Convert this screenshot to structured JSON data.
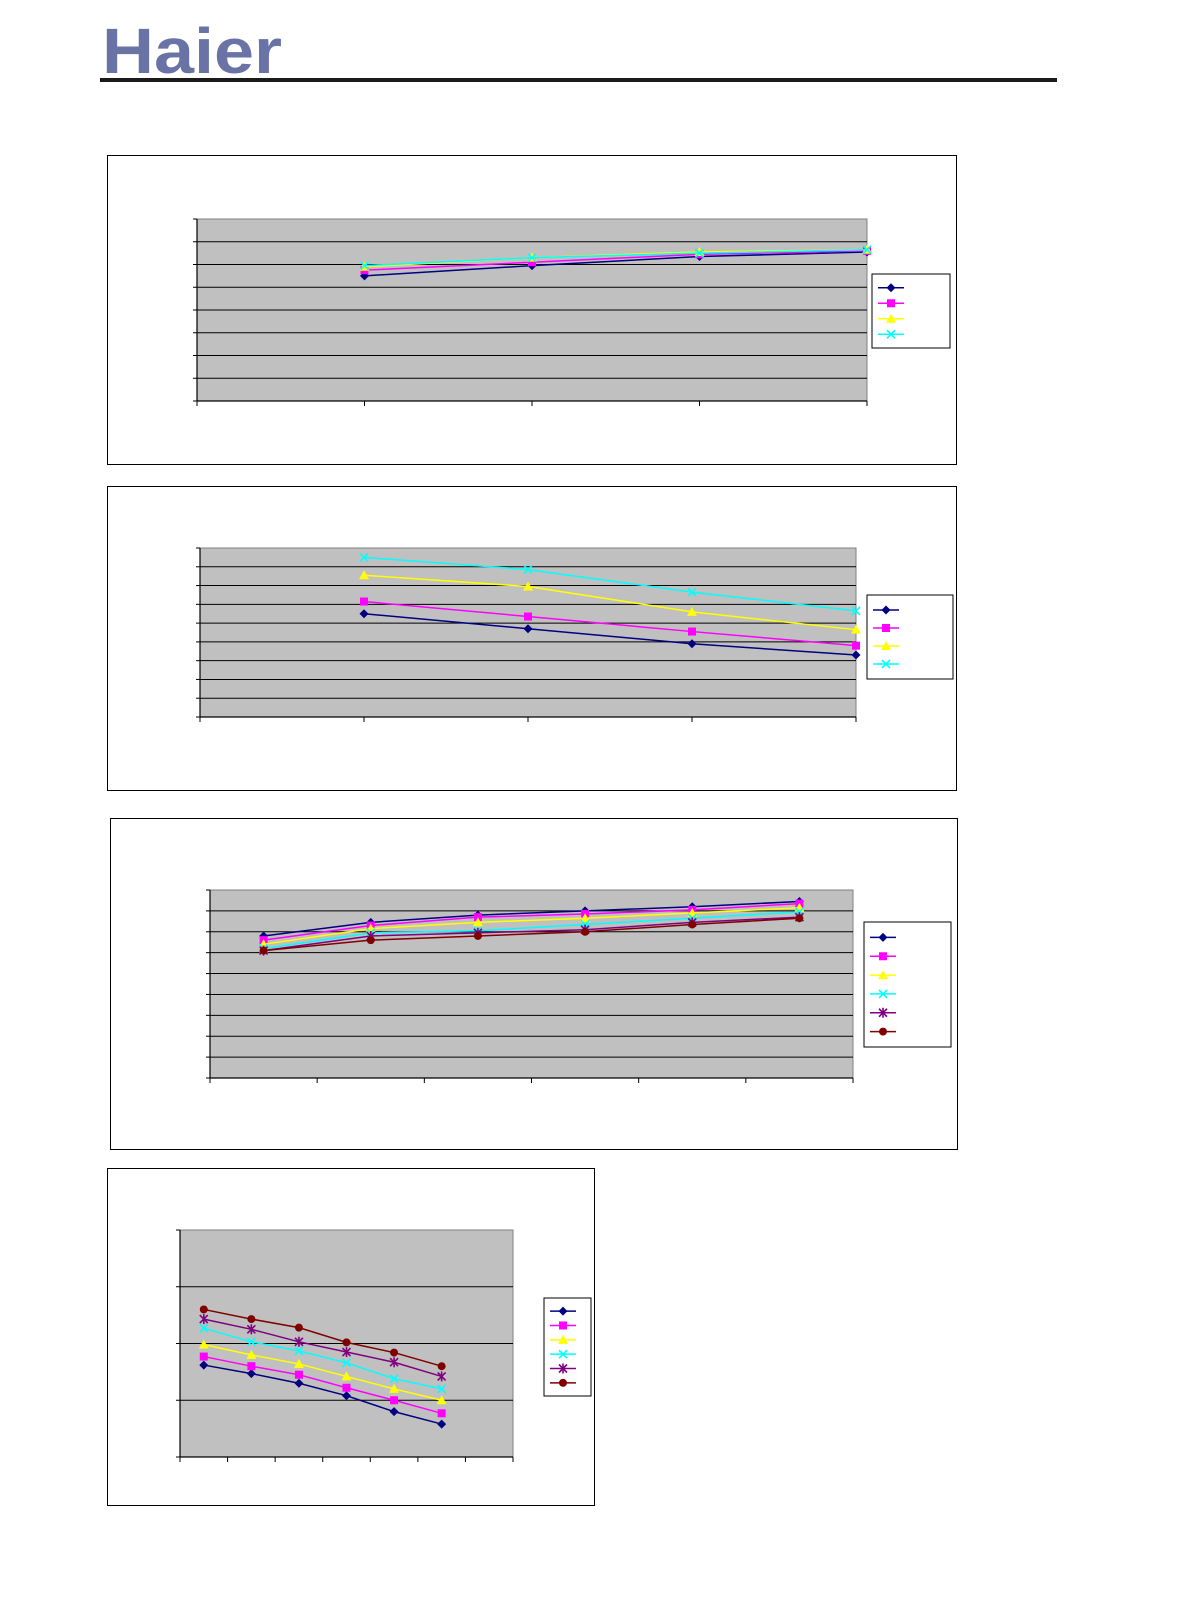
{
  "header": {
    "logo_text": "Haier",
    "logo_color": "#6a73a5",
    "rule_color": "#1a1a1a"
  },
  "style": {
    "plot_bg": "#c0c0c0",
    "grid_color": "#000000",
    "series_colors": [
      "#000080",
      "#ff00ff",
      "#ffff00",
      "#00ffff",
      "#800080",
      "#800000"
    ],
    "series_markers": [
      "diamond",
      "square",
      "triangle",
      "x",
      "star",
      "circle"
    ]
  },
  "chart_data": [
    {
      "type": "line",
      "title": "",
      "grid": true,
      "legend": "right",
      "x": [
        1,
        2,
        3,
        4
      ],
      "ylim": [
        0,
        8
      ],
      "xlim": [
        0,
        4
      ],
      "series": [
        {
          "values": [
            5.5,
            5.95,
            6.35,
            6.55
          ]
        },
        {
          "values": [
            5.75,
            6.1,
            6.45,
            6.6
          ]
        },
        {
          "values": [
            5.9,
            6.3,
            6.55,
            6.65
          ]
        },
        {
          "values": [
            5.95,
            6.3,
            6.5,
            6.65
          ]
        }
      ]
    },
    {
      "type": "line",
      "title": "",
      "grid": true,
      "legend": "right",
      "x": [
        1,
        2,
        3,
        4
      ],
      "ylim": [
        0,
        9
      ],
      "xlim": [
        0,
        4
      ],
      "series": [
        {
          "values": [
            5.5,
            4.7,
            3.9,
            3.3
          ]
        },
        {
          "values": [
            6.15,
            5.35,
            4.55,
            3.8
          ]
        },
        {
          "values": [
            7.55,
            6.95,
            5.6,
            4.65
          ]
        },
        {
          "values": [
            8.5,
            7.85,
            6.65,
            5.65
          ]
        }
      ]
    },
    {
      "type": "line",
      "title": "",
      "grid": true,
      "legend": "right",
      "x": [
        1,
        2,
        3,
        4,
        5,
        6
      ],
      "ylim": [
        0,
        9
      ],
      "xlim": [
        0.5,
        6.5
      ],
      "series": [
        {
          "values": [
            6.8,
            7.45,
            7.8,
            8.0,
            8.2,
            8.45
          ]
        },
        {
          "values": [
            6.6,
            7.3,
            7.7,
            7.85,
            8.05,
            8.35
          ]
        },
        {
          "values": [
            6.4,
            7.15,
            7.45,
            7.65,
            7.9,
            8.15
          ]
        },
        {
          "values": [
            6.2,
            6.95,
            7.05,
            7.35,
            7.65,
            7.95
          ]
        },
        {
          "values": [
            6.1,
            6.8,
            6.95,
            7.1,
            7.45,
            7.7
          ]
        },
        {
          "values": [
            6.1,
            6.6,
            6.8,
            7.0,
            7.35,
            7.65
          ]
        }
      ]
    },
    {
      "type": "line",
      "title": "",
      "grid": true,
      "legend": "right",
      "x": [
        1,
        2,
        3,
        4,
        5,
        6
      ],
      "ylim": [
        0,
        4
      ],
      "xlim": [
        0.5,
        7.5
      ],
      "series": [
        {
          "values": [
            1.62,
            1.47,
            1.3,
            1.08,
            0.8,
            0.58
          ]
        },
        {
          "values": [
            1.77,
            1.6,
            1.45,
            1.22,
            1.0,
            0.77
          ]
        },
        {
          "values": [
            1.98,
            1.8,
            1.64,
            1.42,
            1.2,
            1.0
          ]
        },
        {
          "values": [
            2.27,
            2.03,
            1.87,
            1.66,
            1.38,
            1.2
          ]
        },
        {
          "values": [
            2.43,
            2.25,
            2.03,
            1.85,
            1.67,
            1.42
          ]
        },
        {
          "values": [
            2.6,
            2.43,
            2.28,
            2.02,
            1.84,
            1.6
          ]
        }
      ]
    }
  ]
}
